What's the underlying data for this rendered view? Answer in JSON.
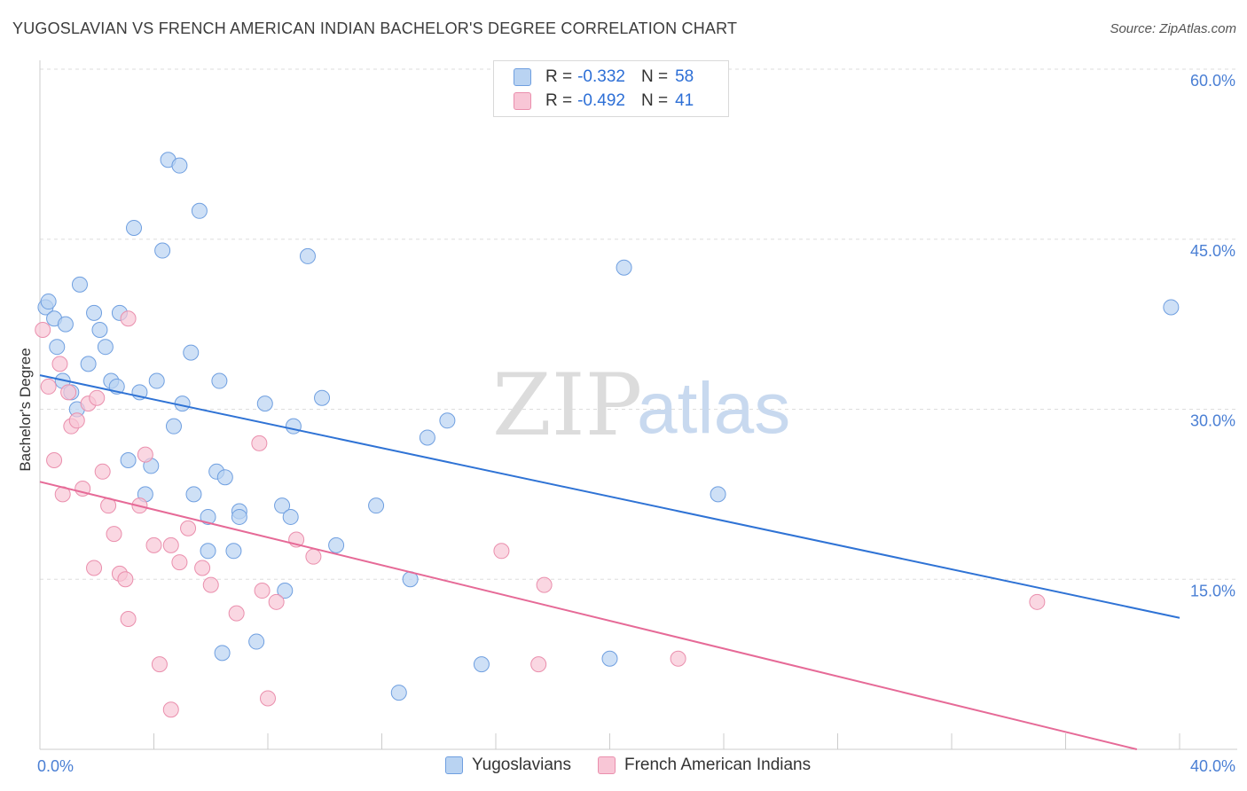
{
  "title": "YUGOSLAVIAN VS FRENCH AMERICAN INDIAN BACHELOR'S DEGREE CORRELATION CHART",
  "source": "Source: ZipAtlas.com",
  "watermark": {
    "zip": "ZIP",
    "atlas": "atlas"
  },
  "colors": {
    "blue_fill": "#b9d3f2",
    "blue_stroke": "#6f9fe0",
    "blue_line": "#2f73d5",
    "pink_fill": "#f8c6d6",
    "pink_stroke": "#ea8fad",
    "pink_line": "#e66a97",
    "grid": "#dddddd",
    "tick_text": "#4a7fd4"
  },
  "legend": {
    "r_label": "R =",
    "n_label": "N =",
    "series": [
      {
        "name": "Yugoslavians",
        "r": "-0.332",
        "n": "58"
      },
      {
        "name": "French American Indians",
        "r": "-0.492",
        "n": "41"
      }
    ]
  },
  "chart_data": {
    "type": "scatter",
    "title": "YUGOSLAVIAN VS FRENCH AMERICAN INDIAN BACHELOR'S DEGREE CORRELATION CHART",
    "xlabel": "",
    "ylabel": "Bachelor's Degree",
    "xlim": [
      0,
      40
    ],
    "ylim": [
      0,
      60
    ],
    "x_tick_labels": [
      {
        "value": 0,
        "label": "0.0%"
      },
      {
        "value": 40,
        "label": "40.0%"
      }
    ],
    "y_tick_labels": [
      {
        "value": 15,
        "label": "15.0%"
      },
      {
        "value": 30,
        "label": "30.0%"
      },
      {
        "value": 45,
        "label": "45.0%"
      },
      {
        "value": 60,
        "label": "60.0%"
      }
    ],
    "series": [
      {
        "name": "Yugoslavians",
        "trend": {
          "x": [
            0,
            40
          ],
          "y": [
            33.0,
            11.6
          ]
        },
        "points": [
          [
            0.2,
            39.0
          ],
          [
            0.3,
            39.5
          ],
          [
            0.5,
            38.0
          ],
          [
            0.9,
            37.5
          ],
          [
            0.6,
            35.5
          ],
          [
            0.8,
            32.5
          ],
          [
            1.4,
            41.0
          ],
          [
            1.9,
            38.5
          ],
          [
            2.1,
            37.0
          ],
          [
            2.3,
            35.5
          ],
          [
            1.7,
            34.0
          ],
          [
            1.1,
            31.5
          ],
          [
            1.3,
            30.0
          ],
          [
            2.5,
            32.5
          ],
          [
            2.7,
            32.0
          ],
          [
            2.8,
            38.5
          ],
          [
            3.3,
            46.0
          ],
          [
            3.5,
            31.5
          ],
          [
            4.1,
            32.5
          ],
          [
            4.3,
            44.0
          ],
          [
            4.5,
            52.0
          ],
          [
            4.9,
            51.5
          ],
          [
            5.6,
            47.5
          ],
          [
            5.3,
            35.0
          ],
          [
            5.0,
            30.5
          ],
          [
            4.7,
            28.5
          ],
          [
            3.1,
            25.5
          ],
          [
            3.9,
            25.0
          ],
          [
            3.7,
            22.5
          ],
          [
            5.4,
            22.5
          ],
          [
            6.3,
            32.5
          ],
          [
            6.2,
            24.5
          ],
          [
            6.5,
            24.0
          ],
          [
            5.9,
            20.5
          ],
          [
            7.0,
            21.0
          ],
          [
            7.0,
            20.5
          ],
          [
            5.9,
            17.5
          ],
          [
            6.8,
            17.5
          ],
          [
            7.9,
            30.5
          ],
          [
            8.9,
            28.5
          ],
          [
            8.5,
            21.5
          ],
          [
            8.8,
            20.5
          ],
          [
            8.6,
            14.0
          ],
          [
            9.4,
            43.5
          ],
          [
            9.9,
            31.0
          ],
          [
            10.4,
            18.0
          ],
          [
            11.8,
            21.5
          ],
          [
            13.6,
            27.5
          ],
          [
            14.3,
            29.0
          ],
          [
            13.0,
            15.0
          ],
          [
            6.4,
            8.5
          ],
          [
            7.6,
            9.5
          ],
          [
            12.6,
            5.0
          ],
          [
            15.5,
            7.5
          ],
          [
            20.0,
            8.0
          ],
          [
            20.5,
            42.5
          ],
          [
            23.8,
            22.5
          ],
          [
            39.7,
            39.0
          ]
        ]
      },
      {
        "name": "French American Indians",
        "trend": {
          "x": [
            0,
            38.5
          ],
          "y": [
            23.6,
            0
          ]
        },
        "points": [
          [
            0.1,
            37.0
          ],
          [
            0.3,
            32.0
          ],
          [
            0.5,
            25.5
          ],
          [
            0.7,
            34.0
          ],
          [
            0.8,
            22.5
          ],
          [
            1.0,
            31.5
          ],
          [
            1.1,
            28.5
          ],
          [
            1.3,
            29.0
          ],
          [
            1.5,
            23.0
          ],
          [
            1.7,
            30.5
          ],
          [
            2.0,
            31.0
          ],
          [
            2.2,
            24.5
          ],
          [
            2.4,
            21.5
          ],
          [
            2.6,
            19.0
          ],
          [
            1.9,
            16.0
          ],
          [
            2.8,
            15.5
          ],
          [
            3.0,
            15.0
          ],
          [
            3.1,
            11.5
          ],
          [
            3.5,
            21.5
          ],
          [
            3.7,
            26.0
          ],
          [
            4.0,
            18.0
          ],
          [
            4.6,
            18.0
          ],
          [
            4.9,
            16.5
          ],
          [
            5.2,
            19.5
          ],
          [
            5.7,
            16.0
          ],
          [
            6.0,
            14.5
          ],
          [
            6.9,
            12.0
          ],
          [
            7.7,
            27.0
          ],
          [
            7.8,
            14.0
          ],
          [
            8.3,
            13.0
          ],
          [
            9.0,
            18.5
          ],
          [
            9.6,
            17.0
          ],
          [
            3.1,
            38.0
          ],
          [
            4.2,
            7.5
          ],
          [
            4.6,
            3.5
          ],
          [
            8.0,
            4.5
          ],
          [
            16.2,
            17.5
          ],
          [
            17.7,
            14.5
          ],
          [
            17.5,
            7.5
          ],
          [
            22.4,
            8.0
          ],
          [
            35.0,
            13.0
          ]
        ]
      }
    ]
  }
}
